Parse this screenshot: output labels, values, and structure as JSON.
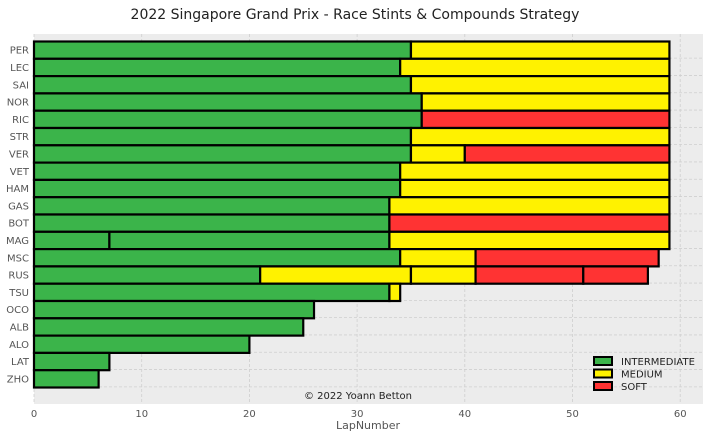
{
  "chart_data": {
    "type": "bar",
    "orientation": "horizontal",
    "stacked": true,
    "title": "2022 Singapore Grand Prix - Race Stints & Compounds Strategy",
    "xlabel": "LapNumber",
    "ylabel": "",
    "xlim": [
      0,
      62
    ],
    "xticks": [
      0,
      10,
      20,
      30,
      40,
      50,
      60
    ],
    "grid": true,
    "legend_position": "lower-right",
    "annotation": "© 2022 Yoann Betton",
    "compounds": [
      {
        "name": "INTERMEDIATE",
        "color": "#3bb44a"
      },
      {
        "name": "MEDIUM",
        "color": "#fff200"
      },
      {
        "name": "SOFT",
        "color": "#ff3333"
      }
    ],
    "drivers": [
      {
        "driver": "PER",
        "stints": [
          {
            "compound": "INTERMEDIATE",
            "start": 0,
            "end": 35
          },
          {
            "compound": "MEDIUM",
            "start": 35,
            "end": 59
          }
        ]
      },
      {
        "driver": "LEC",
        "stints": [
          {
            "compound": "INTERMEDIATE",
            "start": 0,
            "end": 34
          },
          {
            "compound": "MEDIUM",
            "start": 34,
            "end": 59
          }
        ]
      },
      {
        "driver": "SAI",
        "stints": [
          {
            "compound": "INTERMEDIATE",
            "start": 0,
            "end": 35
          },
          {
            "compound": "MEDIUM",
            "start": 35,
            "end": 59
          }
        ]
      },
      {
        "driver": "NOR",
        "stints": [
          {
            "compound": "INTERMEDIATE",
            "start": 0,
            "end": 36
          },
          {
            "compound": "MEDIUM",
            "start": 36,
            "end": 59
          }
        ]
      },
      {
        "driver": "RIC",
        "stints": [
          {
            "compound": "INTERMEDIATE",
            "start": 0,
            "end": 36
          },
          {
            "compound": "SOFT",
            "start": 36,
            "end": 59
          }
        ]
      },
      {
        "driver": "STR",
        "stints": [
          {
            "compound": "INTERMEDIATE",
            "start": 0,
            "end": 35
          },
          {
            "compound": "MEDIUM",
            "start": 35,
            "end": 59
          }
        ]
      },
      {
        "driver": "VER",
        "stints": [
          {
            "compound": "INTERMEDIATE",
            "start": 0,
            "end": 35
          },
          {
            "compound": "MEDIUM",
            "start": 35,
            "end": 40
          },
          {
            "compound": "SOFT",
            "start": 40,
            "end": 59
          }
        ]
      },
      {
        "driver": "VET",
        "stints": [
          {
            "compound": "INTERMEDIATE",
            "start": 0,
            "end": 34
          },
          {
            "compound": "MEDIUM",
            "start": 34,
            "end": 59
          }
        ]
      },
      {
        "driver": "HAM",
        "stints": [
          {
            "compound": "INTERMEDIATE",
            "start": 0,
            "end": 34
          },
          {
            "compound": "MEDIUM",
            "start": 34,
            "end": 59
          }
        ]
      },
      {
        "driver": "GAS",
        "stints": [
          {
            "compound": "INTERMEDIATE",
            "start": 0,
            "end": 33
          },
          {
            "compound": "MEDIUM",
            "start": 33,
            "end": 59
          }
        ]
      },
      {
        "driver": "BOT",
        "stints": [
          {
            "compound": "INTERMEDIATE",
            "start": 0,
            "end": 33
          },
          {
            "compound": "SOFT",
            "start": 33,
            "end": 59
          }
        ]
      },
      {
        "driver": "MAG",
        "stints": [
          {
            "compound": "INTERMEDIATE",
            "start": 0,
            "end": 7
          },
          {
            "compound": "INTERMEDIATE",
            "start": 7,
            "end": 33
          },
          {
            "compound": "MEDIUM",
            "start": 33,
            "end": 59
          }
        ]
      },
      {
        "driver": "MSC",
        "stints": [
          {
            "compound": "INTERMEDIATE",
            "start": 0,
            "end": 34
          },
          {
            "compound": "MEDIUM",
            "start": 34,
            "end": 41
          },
          {
            "compound": "SOFT",
            "start": 41,
            "end": 58
          }
        ]
      },
      {
        "driver": "RUS",
        "stints": [
          {
            "compound": "INTERMEDIATE",
            "start": 0,
            "end": 21
          },
          {
            "compound": "MEDIUM",
            "start": 21,
            "end": 35
          },
          {
            "compound": "MEDIUM",
            "start": 35,
            "end": 41
          },
          {
            "compound": "SOFT",
            "start": 41,
            "end": 51
          },
          {
            "compound": "SOFT",
            "start": 51,
            "end": 57
          }
        ]
      },
      {
        "driver": "TSU",
        "stints": [
          {
            "compound": "INTERMEDIATE",
            "start": 0,
            "end": 33
          },
          {
            "compound": "MEDIUM",
            "start": 33,
            "end": 34
          }
        ]
      },
      {
        "driver": "OCO",
        "stints": [
          {
            "compound": "INTERMEDIATE",
            "start": 0,
            "end": 26
          }
        ]
      },
      {
        "driver": "ALB",
        "stints": [
          {
            "compound": "INTERMEDIATE",
            "start": 0,
            "end": 25
          }
        ]
      },
      {
        "driver": "ALO",
        "stints": [
          {
            "compound": "INTERMEDIATE",
            "start": 0,
            "end": 20
          }
        ]
      },
      {
        "driver": "LAT",
        "stints": [
          {
            "compound": "INTERMEDIATE",
            "start": 0,
            "end": 7
          }
        ]
      },
      {
        "driver": "ZHO",
        "stints": [
          {
            "compound": "INTERMEDIATE",
            "start": 0,
            "end": 6
          }
        ]
      }
    ]
  }
}
